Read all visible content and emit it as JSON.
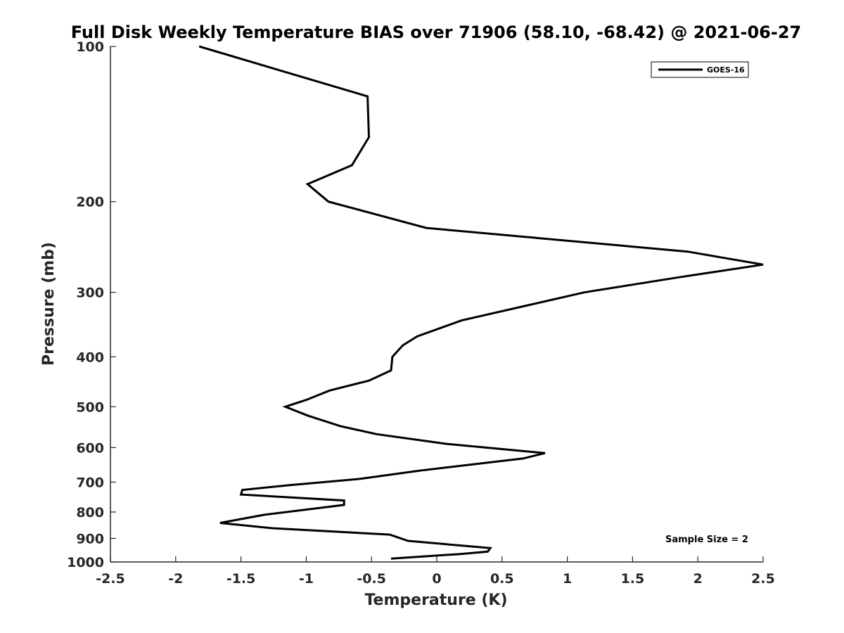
{
  "chart_data": {
    "type": "line",
    "title": "Full Disk Weekly Temperature BIAS over 71906 (58.10, -68.42) @ 2021-06-27",
    "xlabel": "Temperature (K)",
    "ylabel": "Pressure (mb)",
    "xlim": [
      -2.5,
      2.5
    ],
    "ylim": [
      100,
      1000
    ],
    "y_scale": "log",
    "y_reversed": true,
    "grid": false,
    "legend_position": "top-right",
    "x_ticks": [
      -2.5,
      -2,
      -1.5,
      -1,
      -0.5,
      0,
      0.5,
      1,
      1.5,
      2,
      2.5
    ],
    "x_tick_labels": [
      "-2.5",
      "-2",
      "-1.5",
      "-1",
      "-0.5",
      "0",
      "0.5",
      "1",
      "1.5",
      "2",
      "2.5"
    ],
    "y_ticks": [
      100,
      200,
      300,
      400,
      500,
      600,
      700,
      800,
      900,
      1000
    ],
    "y_tick_labels": [
      "100",
      "200",
      "300",
      "400",
      "500",
      "600",
      "700",
      "800",
      "900",
      "1000"
    ],
    "series": [
      {
        "name": "GOES-16",
        "color": "#000000",
        "points": [
          [
            -1.82,
            100
          ],
          [
            -0.53,
            125
          ],
          [
            -0.52,
            150
          ],
          [
            -0.65,
            170
          ],
          [
            -0.99,
            185
          ],
          [
            -0.83,
            200
          ],
          [
            -0.08,
            225
          ],
          [
            1.92,
            250
          ],
          [
            2.5,
            265
          ],
          [
            1.87,
            280
          ],
          [
            1.13,
            300
          ],
          [
            0.19,
            340
          ],
          [
            -0.15,
            365
          ],
          [
            -0.26,
            380
          ],
          [
            -0.34,
            400
          ],
          [
            -0.35,
            425
          ],
          [
            -0.52,
            445
          ],
          [
            -0.82,
            465
          ],
          [
            -1.0,
            485
          ],
          [
            -1.16,
            500
          ],
          [
            -0.99,
            520
          ],
          [
            -0.74,
            545
          ],
          [
            -0.46,
            565
          ],
          [
            0.07,
            590
          ],
          [
            0.83,
            615
          ],
          [
            0.66,
            630
          ],
          [
            -0.13,
            665
          ],
          [
            -0.59,
            690
          ],
          [
            -1.14,
            710
          ],
          [
            -1.49,
            725
          ],
          [
            -1.5,
            740
          ],
          [
            -0.71,
            760
          ],
          [
            -0.71,
            775
          ],
          [
            -1.32,
            810
          ],
          [
            -1.66,
            840
          ],
          [
            -1.26,
            860
          ],
          [
            -0.36,
            885
          ],
          [
            -0.22,
            910
          ],
          [
            0.41,
            940
          ],
          [
            0.39,
            955
          ],
          [
            0.18,
            965
          ],
          [
            -0.35,
            985
          ]
        ]
      }
    ],
    "annotations": [
      {
        "text": "Sample Size = 2"
      }
    ]
  },
  "colors": {
    "background": "#ffffff",
    "axes": "#262626",
    "line": "#000000"
  }
}
